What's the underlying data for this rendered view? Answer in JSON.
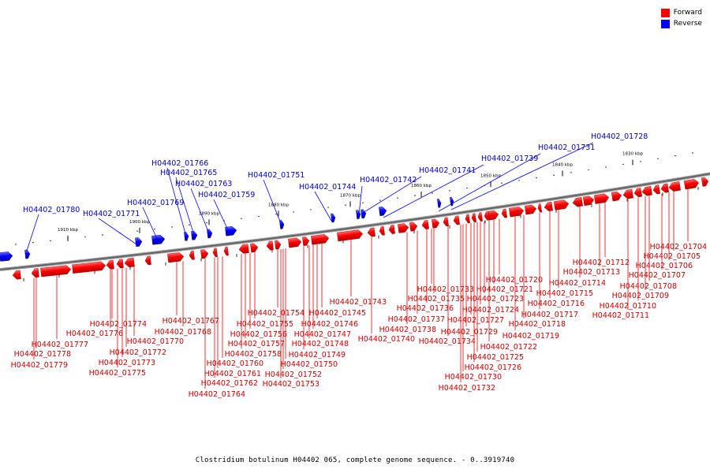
{
  "legend": {
    "forward_label": "Forward",
    "reverse_label": "Reverse",
    "forward_color": "#ff0000",
    "reverse_color": "#0000ff"
  },
  "caption": "Clostridium botulinum H04402 065, complete genome sequence. - 0..3919740",
  "ticks": [
    "1910 kbp",
    "1900 kbp",
    "1890 kbp",
    "1880 kbp",
    "1870 kbp",
    "1860 kbp",
    "1850 kbp",
    "1840 kbp",
    "1830 kbp"
  ],
  "reverse_genes": [
    "H04402_01780",
    "H04402_01771",
    "H04402_01769",
    "H04402_01766",
    "H04402_01765",
    "H04402_01763",
    "H04402_01759",
    "H04402_01751",
    "H04402_01744",
    "H04402_01742",
    "H04402_01741",
    "H04402_01739",
    "H04402_01731",
    "H04402_01728"
  ],
  "forward_genes": [
    "H04402_01779",
    "H04402_01778",
    "H04402_01777",
    "H04402_01776",
    "H04402_01775",
    "H04402_01774",
    "H04402_01773",
    "H04402_01772",
    "H04402_01770",
    "H04402_01768",
    "H04402_01767",
    "H04402_01764",
    "H04402_01762",
    "H04402_01761",
    "H04402_01760",
    "H04402_01758",
    "H04402_01757",
    "H04402_01756",
    "H04402_01755",
    "H04402_01754",
    "H04402_01753",
    "H04402_01752",
    "H04402_01750",
    "H04402_01749",
    "H04402_01748",
    "H04402_01747",
    "H04402_01746",
    "H04402_01745",
    "H04402_01743",
    "H04402_01740",
    "H04402_01738",
    "H04402_01737",
    "H04402_01736",
    "H04402_01735",
    "H04402_01734",
    "H04402_01733",
    "H04402_01732",
    "H04402_01730",
    "H04402_01729",
    "H04402_01727",
    "H04402_01726",
    "H04402_01725",
    "H04402_01724",
    "H04402_01723",
    "H04402_01722",
    "H04402_01721",
    "H04402_01720",
    "H04402_01719",
    "H04402_01718",
    "H04402_01717",
    "H04402_01716",
    "H04402_01715",
    "H04402_01714",
    "H04402_01713",
    "H04402_01712",
    "H04402_01711",
    "H04402_01710",
    "H04402_01709",
    "H04402_01708",
    "H04402_01707",
    "H04402_01706",
    "H04402_01705",
    "H04402_01704"
  ]
}
